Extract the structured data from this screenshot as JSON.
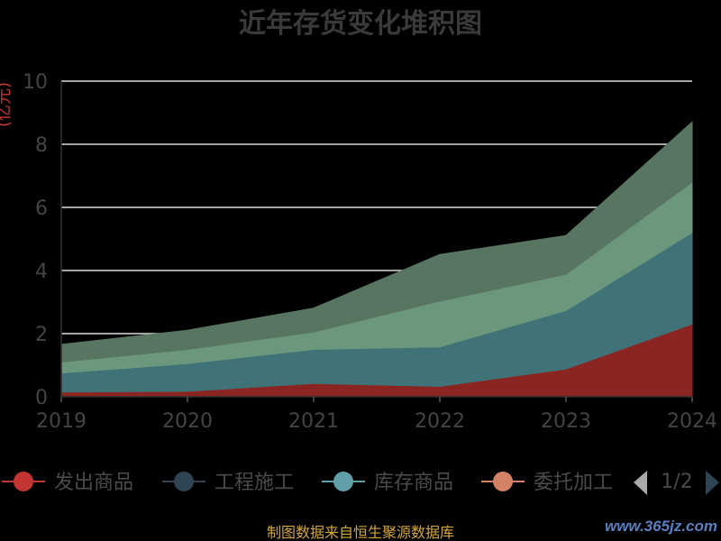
{
  "chart_data": {
    "type": "area",
    "stacked": true,
    "title": "近年存货变化堆积图",
    "ylabel": "(亿元)",
    "x": [
      "2019",
      "2020",
      "2021",
      "2022",
      "2023",
      "2024"
    ],
    "ylim": [
      0,
      10
    ],
    "yticks": [
      0,
      2,
      4,
      6,
      8,
      10
    ],
    "grid": true,
    "legend_position": "bottom",
    "series": [
      {
        "name": "发出商品",
        "color": "#c23531",
        "fill": "#8b2522",
        "values": [
          0.15,
          0.17,
          0.42,
          0.33,
          0.88,
          2.3
        ]
      },
      {
        "name": "工程施工",
        "color": "#2f4554",
        "fill": "#3f7378",
        "values": [
          0.6,
          0.88,
          1.08,
          1.25,
          1.85,
          2.9
        ]
      },
      {
        "name": "库存商品",
        "color": "#61a0a8",
        "fill": "#6b977c",
        "values": [
          0.35,
          0.45,
          0.55,
          1.45,
          1.15,
          1.6
        ]
      },
      {
        "name": "委托加工",
        "color": "#d48265",
        "fill": "#d48265",
        "values": [
          0,
          0,
          0,
          0,
          0,
          0
        ]
      },
      {
        "name": "",
        "color": "#5e7e68",
        "fill": "#587561",
        "values": [
          0.55,
          0.6,
          0.75,
          1.47,
          1.22,
          1.9
        ]
      }
    ],
    "legend_page": "1/2"
  },
  "footer": {
    "source": "制图数据来自恒生聚源数据库",
    "watermark": "www.365jz.com"
  }
}
